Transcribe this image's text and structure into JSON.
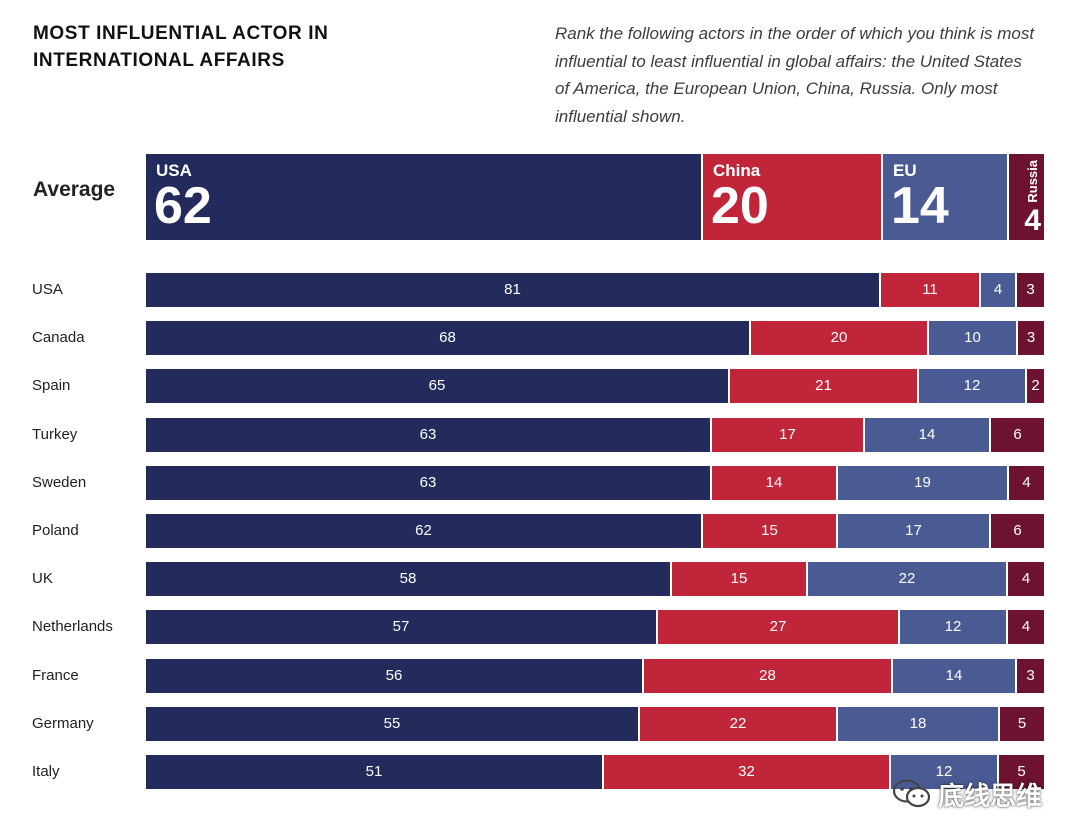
{
  "title": "MOST INFLUENTIAL ACTOR IN INTERNATIONAL AFFAIRS",
  "subtitle": "Rank the following actors in the order of which you think is most influential to least influential in global affairs: the United States of America, the European Union, China, Russia. Only most influential shown.",
  "colors": {
    "USA": "#222b5c",
    "China": "#c0253a",
    "EU": "#4a5b94",
    "Russia": "#6d1230"
  },
  "watermark": "底线思维",
  "chart_data": {
    "type": "bar",
    "orientation": "horizontal",
    "stacked": true,
    "normalized_to": 100,
    "series_names": [
      "USA",
      "China",
      "EU",
      "Russia"
    ],
    "average": {
      "label": "Average",
      "values": [
        62,
        20,
        14,
        4
      ]
    },
    "categories": [
      "USA",
      "Canada",
      "Spain",
      "Turkey",
      "Sweden",
      "Poland",
      "UK",
      "Netherlands",
      "France",
      "Germany",
      "Italy"
    ],
    "series": [
      {
        "name": "USA",
        "values": [
          81,
          68,
          65,
          63,
          63,
          62,
          58,
          57,
          56,
          55,
          51
        ]
      },
      {
        "name": "China",
        "values": [
          11,
          20,
          21,
          17,
          14,
          15,
          15,
          27,
          28,
          22,
          32
        ]
      },
      {
        "name": "EU",
        "values": [
          4,
          10,
          12,
          14,
          19,
          17,
          22,
          12,
          14,
          18,
          12
        ]
      },
      {
        "name": "Russia",
        "values": [
          3,
          3,
          2,
          6,
          4,
          6,
          4,
          4,
          3,
          5,
          5
        ]
      }
    ],
    "title": "MOST INFLUENTIAL ACTOR IN INTERNATIONAL AFFAIRS",
    "xlabel": "",
    "ylabel": ""
  }
}
